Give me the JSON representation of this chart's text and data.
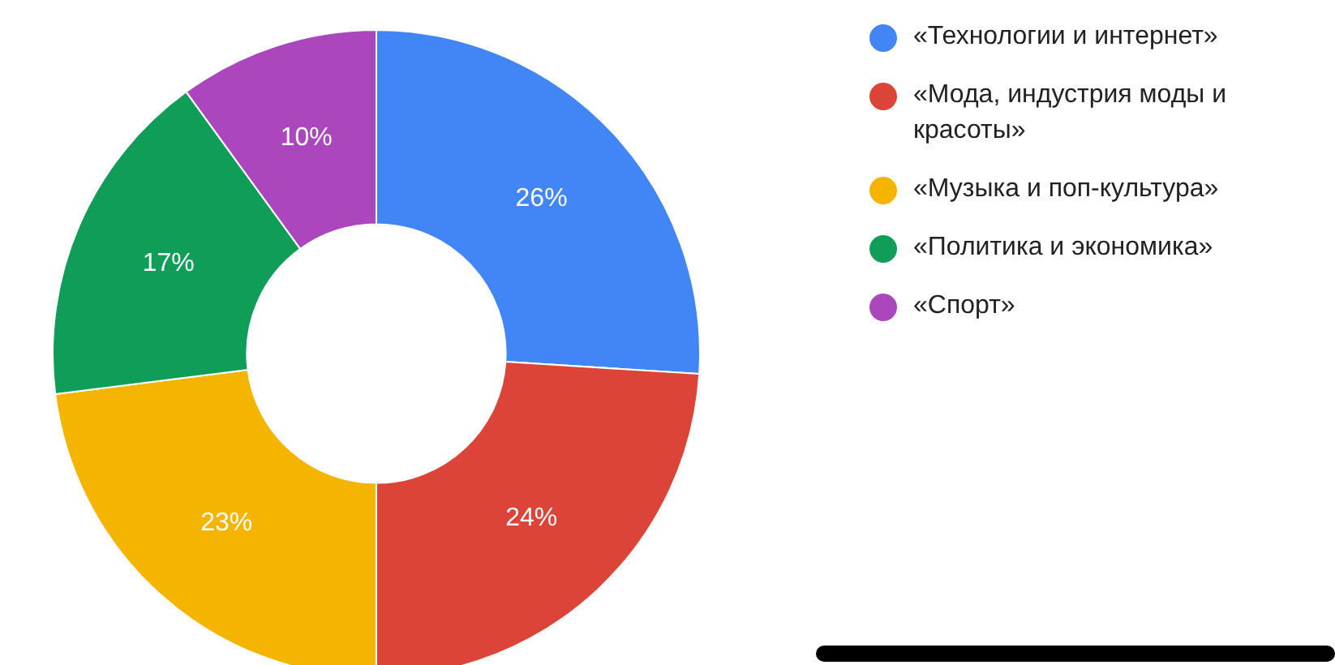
{
  "chart_data": {
    "type": "donut",
    "categories": [
      "«Технологии и интернет»",
      "«Мода, индустрия моды и красоты»",
      "«Музыка и поп-культура»",
      "«Политика и экономика»",
      "«Спорт»"
    ],
    "values": [
      26,
      24,
      23,
      17,
      10
    ],
    "colors": [
      "#4285f4",
      "#db4437",
      "#f4b400",
      "#0f9d58",
      "#ab47bc"
    ],
    "value_labels": [
      "26%",
      "24%",
      "23%",
      "17%",
      "10%"
    ],
    "legend": "right"
  }
}
